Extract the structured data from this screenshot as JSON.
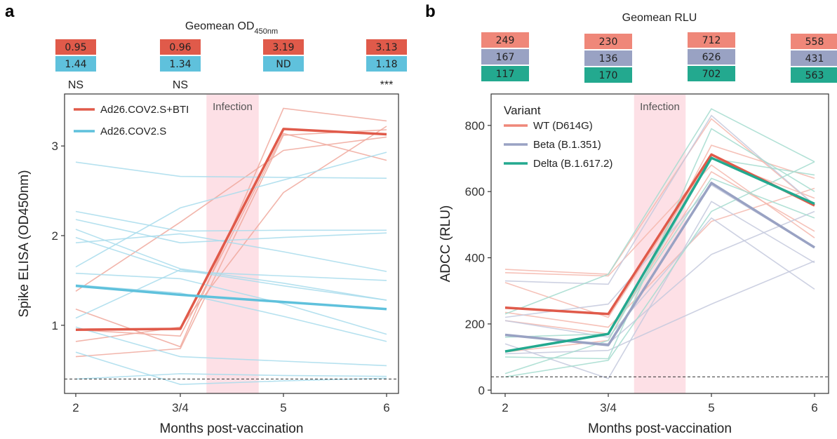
{
  "chart_data": [
    {
      "panel": "a",
      "type": "line",
      "geomean_title": "Geomean OD",
      "geomean_title_sub": "450nm",
      "categories": [
        "2",
        "3/4",
        "5",
        "6"
      ],
      "xlabel": "Months post-vaccination",
      "ylabel": "Spike ELISA (OD450nm)",
      "ylim": [
        0.24,
        3.58
      ],
      "yticks": [
        1,
        2,
        3
      ],
      "cutoff": 0.4,
      "infection_label": "Infection",
      "infection_span": [
        2.25,
        2.75
      ],
      "geomean_rows": [
        {
          "color": "#e05a4a",
          "values": [
            "0.95",
            "0.96",
            "3.19",
            "3.13"
          ]
        },
        {
          "color": "#5fc1dc",
          "values": [
            "1.44",
            "1.34",
            "ND",
            "1.18"
          ]
        }
      ],
      "significance": [
        "NS",
        "NS",
        "",
        "***"
      ],
      "series": [
        {
          "name": "Ad26.COV2.S+BTI",
          "color": "#e05a4a",
          "values": [
            0.95,
            0.96,
            3.19,
            3.13
          ]
        },
        {
          "name": "Ad26.COV2.S",
          "color": "#5fc1dc",
          "values": [
            1.44,
            1.34,
            1.26,
            1.18
          ]
        }
      ],
      "individual_lines": [
        {
          "color": "#f0a89c",
          "values": [
            1.18,
            0.76,
            3.42,
            3.28
          ]
        },
        {
          "color": "#f0a89c",
          "values": [
            0.65,
            0.74,
            3.12,
            3.18
          ]
        },
        {
          "color": "#f0a89c",
          "values": [
            0.95,
            0.88,
            3.14,
            2.84
          ]
        },
        {
          "color": "#f0a89c",
          "values": [
            0.82,
            0.98,
            2.48,
            3.22
          ]
        },
        {
          "color": "#f0a89c",
          "values": [
            1.38,
            2.15,
            2.95,
            3.1
          ]
        },
        {
          "color": "#a8dcec",
          "values": [
            2.82,
            2.66,
            2.65,
            2.64
          ]
        },
        {
          "color": "#a8dcec",
          "values": [
            2.27,
            2.05,
            2.06,
            2.06
          ]
        },
        {
          "color": "#a8dcec",
          "values": [
            2.18,
            1.92,
            1.98,
            2.03
          ]
        },
        {
          "color": "#a8dcec",
          "values": [
            2.07,
            1.63,
            1.47,
            1.28
          ]
        },
        {
          "color": "#a8dcec",
          "values": [
            1.98,
            1.6,
            1.55,
            1.5
          ]
        },
        {
          "color": "#a8dcec",
          "values": [
            1.92,
            2.02,
            1.82,
            1.6
          ]
        },
        {
          "color": "#a8dcec",
          "values": [
            1.65,
            2.31,
            2.62,
            2.93
          ]
        },
        {
          "color": "#a8dcec",
          "values": [
            1.58,
            1.52,
            1.24,
            0.9
          ]
        },
        {
          "color": "#a8dcec",
          "values": [
            1.45,
            1.36,
            1.1,
            0.82
          ]
        },
        {
          "color": "#a8dcec",
          "values": [
            1.08,
            1.62,
            1.44,
            1.28
          ]
        },
        {
          "color": "#a8dcec",
          "values": [
            0.98,
            0.65,
            0.6,
            0.55
          ]
        },
        {
          "color": "#a8dcec",
          "values": [
            0.7,
            0.34,
            0.38,
            0.41
          ]
        },
        {
          "color": "#a8dcec",
          "values": [
            0.4,
            0.46,
            0.44,
            0.43
          ]
        }
      ]
    },
    {
      "panel": "b",
      "type": "line",
      "geomean_title": "Geomean RLU",
      "categories": [
        "2",
        "3/4",
        "5",
        "6"
      ],
      "xlabel": "Months post-vaccination",
      "ylabel": "ADCC (RLU)",
      "ylim": [
        -10,
        895
      ],
      "yticks": [
        0,
        200,
        400,
        600,
        800
      ],
      "cutoff": 40,
      "infection_label": "Infection",
      "infection_span": [
        2.25,
        2.75
      ],
      "legend_title": "Variant",
      "geomean_rows": [
        {
          "color": "#ef8779",
          "values": [
            "249",
            "230",
            "712",
            "558"
          ]
        },
        {
          "color": "#99a2c3",
          "values": [
            "167",
            "136",
            "626",
            "431"
          ]
        },
        {
          "color": "#23a98f",
          "values": [
            "117",
            "170",
            "702",
            "563"
          ]
        }
      ],
      "series": [
        {
          "name": "WT (D614G)",
          "color": "#e05a4a",
          "legend_color": "#ef8779",
          "values": [
            249,
            230,
            712,
            558
          ]
        },
        {
          "name": "Beta (B.1.351)",
          "color": "#99a2c3",
          "legend_color": "#99a2c3",
          "values": [
            167,
            136,
            626,
            431
          ]
        },
        {
          "name": "Delta (B.1.617.2)",
          "color": "#23a98f",
          "legend_color": "#23a98f",
          "values": [
            117,
            170,
            702,
            563
          ]
        }
      ],
      "individual_lines": [
        {
          "color": "#f5b7ad",
          "values": [
            365,
            350,
            820,
            560
          ]
        },
        {
          "color": "#f5b7ad",
          "values": [
            355,
            345,
            680,
            460
          ]
        },
        {
          "color": "#f5b7ad",
          "values": [
            325,
            220,
            700,
            580
          ]
        },
        {
          "color": "#f5b7ad",
          "values": [
            235,
            190,
            510,
            610
          ]
        },
        {
          "color": "#f5b7ad",
          "values": [
            210,
            170,
            660,
            480
          ]
        },
        {
          "color": "#f5b7ad",
          "values": [
            115,
            150,
            740,
            640
          ]
        },
        {
          "color": "#c4c9dd",
          "values": [
            330,
            320,
            830,
            560
          ]
        },
        {
          "color": "#c4c9dd",
          "values": [
            220,
            260,
            620,
            430
          ]
        },
        {
          "color": "#c4c9dd",
          "values": [
            140,
            35,
            570,
            385
          ]
        },
        {
          "color": "#c4c9dd",
          "values": [
            210,
            160,
            520,
            305
          ]
        },
        {
          "color": "#c4c9dd",
          "values": [
            110,
            120,
            260,
            390
          ]
        },
        {
          "color": "#c4c9dd",
          "values": [
            165,
            140,
            410,
            540
          ]
        },
        {
          "color": "#a4dccf",
          "values": [
            230,
            350,
            850,
            690
          ]
        },
        {
          "color": "#a4dccf",
          "values": [
            100,
            95,
            790,
            600
          ]
        },
        {
          "color": "#a4dccf",
          "values": [
            50,
            150,
            700,
            650
          ]
        },
        {
          "color": "#a4dccf",
          "values": [
            160,
            170,
            640,
            520
          ]
        },
        {
          "color": "#a4dccf",
          "values": [
            40,
            90,
            540,
            690
          ]
        }
      ]
    }
  ]
}
